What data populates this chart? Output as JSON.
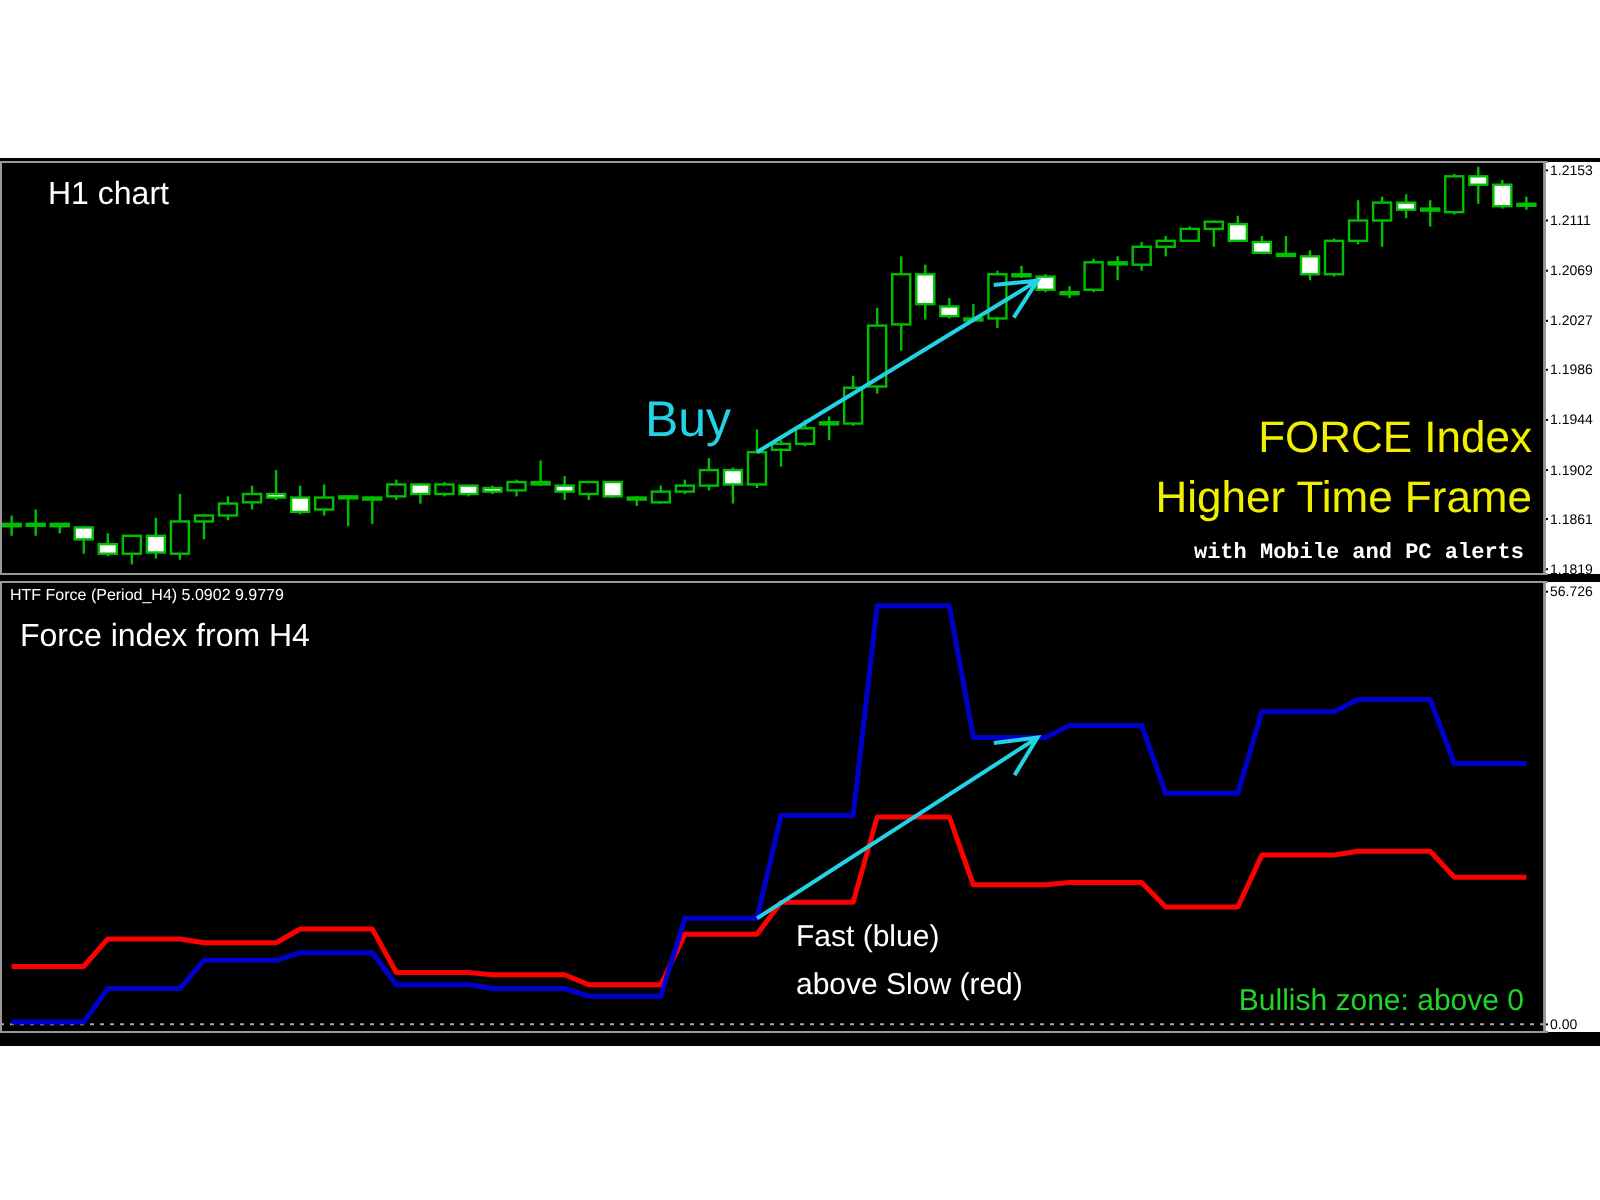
{
  "chart_data": [
    {
      "type": "candlestick",
      "categories": [
        null,
        null,
        null,
        null,
        null,
        null,
        null,
        null,
        null,
        null,
        null,
        null,
        null,
        null,
        null,
        null,
        null,
        null,
        null,
        null,
        null,
        null,
        null,
        null,
        null,
        null,
        null,
        null,
        null,
        null,
        null,
        null,
        null,
        null,
        null,
        null,
        null,
        null,
        null,
        null,
        null,
        null,
        null,
        null,
        null,
        null,
        null,
        null,
        null,
        null,
        null,
        null,
        null,
        null,
        null,
        null,
        null,
        null,
        null,
        null,
        null,
        null,
        null,
        null
      ],
      "ohlc": [
        [
          1.1855,
          1.1864,
          1.1847,
          1.1857
        ],
        [
          1.1857,
          1.1869,
          1.1847,
          1.1857
        ],
        [
          1.1855,
          1.1857,
          1.1849,
          1.1857
        ],
        [
          1.1854,
          1.1855,
          1.1832,
          1.1844
        ],
        [
          1.184,
          1.1849,
          1.183,
          1.1832
        ],
        [
          1.1832,
          1.1847,
          1.1823,
          1.1847
        ],
        [
          1.1847,
          1.1862,
          1.1828,
          1.1833
        ],
        [
          1.1832,
          1.1882,
          1.1827,
          1.1859
        ],
        [
          1.1859,
          1.1865,
          1.1844,
          1.1864
        ],
        [
          1.1864,
          1.188,
          1.186,
          1.1874
        ],
        [
          1.1875,
          1.1889,
          1.1869,
          1.1882
        ],
        [
          1.1882,
          1.1902,
          1.1877,
          1.1879
        ],
        [
          1.1879,
          1.1889,
          1.1865,
          1.1867
        ],
        [
          1.1869,
          1.189,
          1.1864,
          1.1879
        ],
        [
          1.1879,
          1.1881,
          1.1855,
          1.188
        ],
        [
          1.1879,
          1.188,
          1.1857,
          1.1879
        ],
        [
          1.188,
          1.1894,
          1.1877,
          1.189
        ],
        [
          1.189,
          1.1891,
          1.1874,
          1.1882
        ],
        [
          1.1882,
          1.1892,
          1.188,
          1.189
        ],
        [
          1.1889,
          1.1889,
          1.188,
          1.1882
        ],
        [
          1.1887,
          1.1889,
          1.1882,
          1.1884
        ],
        [
          1.1885,
          1.1894,
          1.188,
          1.1892
        ],
        [
          1.1892,
          1.191,
          1.1889,
          1.189
        ],
        [
          1.1889,
          1.1897,
          1.1877,
          1.1884
        ],
        [
          1.1882,
          1.1892,
          1.1877,
          1.1892
        ],
        [
          1.1892,
          1.1893,
          1.1879,
          1.188
        ],
        [
          1.1879,
          1.188,
          1.1872,
          1.1879
        ],
        [
          1.1875,
          1.1889,
          1.1874,
          1.1884
        ],
        [
          1.1884,
          1.1894,
          1.1882,
          1.1889
        ],
        [
          1.1889,
          1.1912,
          1.1885,
          1.1902
        ],
        [
          1.1902,
          1.1904,
          1.1874,
          1.189
        ],
        [
          1.189,
          1.1936,
          1.1887,
          1.1917
        ],
        [
          1.1919,
          1.1927,
          1.1905,
          1.1924
        ],
        [
          1.1924,
          1.1944,
          1.1922,
          1.1937
        ],
        [
          1.1941,
          1.1947,
          1.1927,
          1.1942
        ],
        [
          1.1941,
          1.1981,
          1.1939,
          1.1971
        ],
        [
          1.1972,
          1.2038,
          1.1966,
          1.2023
        ],
        [
          1.2024,
          1.2081,
          1.2002,
          1.2066
        ],
        [
          1.2066,
          1.2074,
          1.2028,
          1.2041
        ],
        [
          1.2039,
          1.2046,
          1.2029,
          1.2031
        ],
        [
          1.2029,
          1.2041,
          1.2026,
          1.2029
        ],
        [
          1.2029,
          1.2069,
          1.2021,
          1.2066
        ],
        [
          1.2066,
          1.2073,
          1.2063,
          1.2066
        ],
        [
          1.2064,
          1.2066,
          1.2051,
          1.2053
        ],
        [
          1.2051,
          1.2056,
          1.2046,
          1.2051
        ],
        [
          1.2053,
          1.2079,
          1.2051,
          1.2076
        ],
        [
          1.2076,
          1.2081,
          1.2061,
          1.2076
        ],
        [
          1.2074,
          1.2093,
          1.2069,
          1.2089
        ],
        [
          1.2089,
          1.2098,
          1.2081,
          1.2094
        ],
        [
          1.2094,
          1.2106,
          1.2093,
          1.2104
        ],
        [
          1.2104,
          1.2111,
          1.2089,
          1.211
        ],
        [
          1.2108,
          1.2115,
          1.2093,
          1.2094
        ],
        [
          1.2093,
          1.2098,
          1.2083,
          1.2084
        ],
        [
          1.2083,
          1.2098,
          1.2081,
          1.2083
        ],
        [
          1.2081,
          1.2086,
          1.2061,
          1.2066
        ],
        [
          1.2066,
          1.2096,
          1.2064,
          1.2094
        ],
        [
          1.2094,
          1.2128,
          1.2091,
          1.2111
        ],
        [
          1.2111,
          1.2131,
          1.2089,
          1.2126
        ],
        [
          1.2126,
          1.2133,
          1.2113,
          1.212
        ],
        [
          1.2121,
          1.2128,
          1.2106,
          1.2121
        ],
        [
          1.2118,
          1.215,
          1.2116,
          1.2148
        ],
        [
          1.2148,
          1.2156,
          1.2125,
          1.2141
        ],
        [
          1.2141,
          1.2145,
          1.2121,
          1.2123
        ],
        [
          1.2125,
          1.2131,
          1.212,
          1.2125
        ]
      ],
      "ylim": [
        1.1815,
        1.216
      ],
      "yticks": [
        1.2153,
        1.2111,
        1.2069,
        1.2027,
        1.1986,
        1.1944,
        1.1902,
        1.1861,
        1.1819
      ],
      "grid": false,
      "annotations": [
        "H1 chart",
        "Buy",
        "FORCE Index",
        "Higher Time Frame",
        "with Mobile and PC alerts"
      ]
    },
    {
      "type": "line",
      "categories": [
        null,
        null,
        null,
        null,
        null,
        null,
        null,
        null,
        null,
        null,
        null,
        null,
        null,
        null,
        null,
        null,
        null,
        null,
        null,
        null,
        null,
        null,
        null,
        null,
        null,
        null,
        null,
        null,
        null,
        null,
        null,
        null,
        null,
        null,
        null,
        null,
        null,
        null,
        null,
        null,
        null,
        null,
        null,
        null,
        null,
        null,
        null,
        null,
        null,
        null,
        null,
        null,
        null,
        null,
        null,
        null,
        null,
        null,
        null,
        null,
        null,
        null,
        null,
        null
      ],
      "series": [
        {
          "color": "#ff0000",
          "values": [
            7.6,
            7.6,
            7.6,
            7.6,
            11.2,
            11.2,
            11.2,
            11.2,
            10.7,
            10.7,
            10.7,
            10.7,
            12.5,
            12.5,
            12.5,
            12.5,
            6.8,
            6.8,
            6.8,
            6.8,
            6.5,
            6.5,
            6.5,
            6.5,
            5.2,
            5.2,
            5.2,
            5.2,
            11.8,
            11.8,
            11.8,
            11.8,
            16.0,
            16.0,
            16.0,
            16.0,
            27.2,
            27.2,
            27.2,
            27.2,
            18.3,
            18.3,
            18.3,
            18.3,
            18.6,
            18.6,
            18.6,
            18.6,
            15.4,
            15.4,
            15.4,
            15.4,
            22.2,
            22.2,
            22.2,
            22.2,
            22.7,
            22.7,
            22.7,
            22.7,
            19.3,
            19.3,
            19.3,
            19.3
          ]
        },
        {
          "color": "#0000cc",
          "values": [
            0.3,
            0.3,
            0.3,
            0.3,
            4.7,
            4.7,
            4.7,
            4.7,
            8.4,
            8.4,
            8.4,
            8.4,
            9.4,
            9.4,
            9.4,
            9.4,
            5.2,
            5.2,
            5.2,
            5.2,
            4.7,
            4.7,
            4.7,
            4.7,
            3.7,
            3.7,
            3.7,
            3.7,
            13.9,
            13.9,
            13.9,
            13.9,
            27.4,
            27.4,
            27.4,
            27.4,
            54.9,
            54.9,
            54.9,
            54.9,
            37.6,
            37.6,
            37.6,
            37.6,
            39.2,
            39.2,
            39.2,
            39.2,
            30.3,
            30.3,
            30.3,
            30.3,
            41.0,
            41.0,
            41.0,
            41.0,
            42.6,
            42.6,
            42.6,
            42.6,
            34.2,
            34.2,
            34.2,
            34.2
          ]
        }
      ],
      "ylim": [
        -1,
        58
      ],
      "yticks": [
        56.726,
        {
          "value": 0,
          "label": "0.00"
        }
      ],
      "grid": false,
      "line_style": "solid",
      "marker": "none",
      "ref_lines": [
        {
          "axis": "y",
          "value": 0,
          "color": "#aaaaaa",
          "line_style": "dotted"
        }
      ],
      "annotations": [
        "HTF Force (Period_H4) 5.0902 9.9779",
        "Force index from H4",
        "Fast (blue)",
        "above Slow (red)",
        "Bullish zone: above 0"
      ]
    }
  ]
}
